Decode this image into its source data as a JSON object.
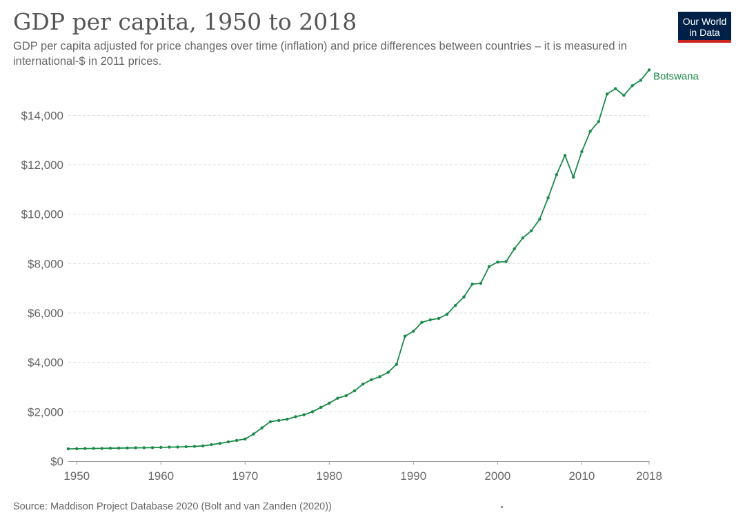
{
  "header": {
    "title": "GDP per capita, 1950 to 2018",
    "subtitle": "GDP per capita adjusted for price changes over time (inflation) and price differences between countries – it is measured in international-$ in 2011 prices."
  },
  "logo": {
    "line1": "Our World",
    "line2": "in Data"
  },
  "footer": {
    "source": "Source: Maddison Project Database 2020 (Bolt and van Zanden (2020))"
  },
  "colors": {
    "series": "#1a8a48",
    "grid": "#dddddd",
    "axis": "#999999",
    "logo_bg": "#002147",
    "logo_bar": "#ce261e"
  },
  "chart_data": {
    "type": "line",
    "title": "GDP per capita, 1950 to 2018",
    "xlabel": "",
    "ylabel": "",
    "xlim": [
      1949,
      2018
    ],
    "ylim": [
      0,
      15600
    ],
    "grid": true,
    "x_ticks": [
      1950,
      1960,
      1970,
      1980,
      1990,
      2000,
      2010,
      2018
    ],
    "y_ticks": [
      0,
      2000,
      4000,
      6000,
      8000,
      10000,
      12000,
      14000
    ],
    "y_tick_labels": [
      "$0",
      "$2,000",
      "$4,000",
      "$6,000",
      "$8,000",
      "$10,000",
      "$12,000",
      "$14,000"
    ],
    "series": [
      {
        "name": "Botswana",
        "x": [
          1949,
          1950,
          1951,
          1952,
          1953,
          1954,
          1955,
          1956,
          1957,
          1958,
          1959,
          1960,
          1961,
          1962,
          1963,
          1964,
          1965,
          1966,
          1967,
          1968,
          1969,
          1970,
          1971,
          1972,
          1973,
          1974,
          1975,
          1976,
          1977,
          1978,
          1979,
          1980,
          1981,
          1982,
          1983,
          1984,
          1985,
          1986,
          1987,
          1988,
          1989,
          1990,
          1991,
          1992,
          1993,
          1994,
          1995,
          1996,
          1997,
          1998,
          1999,
          2000,
          2001,
          2002,
          2003,
          2004,
          2005,
          2006,
          2007,
          2008,
          2009,
          2010,
          2011,
          2012,
          2013,
          2014,
          2015,
          2016,
          2017,
          2018
        ],
        "values": [
          500,
          505,
          510,
          515,
          520,
          525,
          530,
          535,
          540,
          545,
          550,
          560,
          570,
          575,
          585,
          600,
          620,
          670,
          720,
          780,
          840,
          900,
          1100,
          1350,
          1600,
          1650,
          1700,
          1800,
          1880,
          2000,
          2180,
          2350,
          2550,
          2650,
          2850,
          3120,
          3300,
          3420,
          3600,
          3920,
          5060,
          5260,
          5620,
          5720,
          5780,
          5950,
          6310,
          6650,
          7170,
          7200,
          7880,
          8060,
          8080,
          8600,
          9040,
          9330,
          9800,
          10660,
          11600,
          12380,
          11500,
          12530,
          13350,
          13750,
          14860,
          15080,
          14810,
          15200,
          15420,
          15840
        ]
      }
    ]
  }
}
